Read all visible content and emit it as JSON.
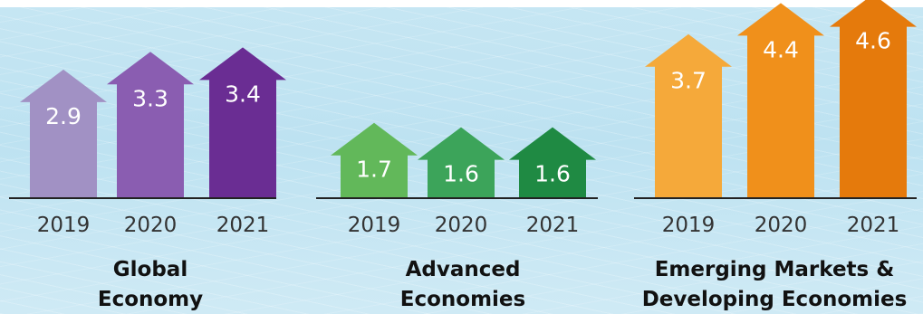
{
  "chart_data": [
    {
      "type": "bar",
      "title_lines": [
        "Global",
        "Economy"
      ],
      "categories": [
        "2019",
        "2020",
        "2021"
      ],
      "values": [
        2.9,
        3.3,
        3.4
      ],
      "colors": [
        "#a191c4",
        "#8a5db1",
        "#6a2d93"
      ]
    },
    {
      "type": "bar",
      "title_lines": [
        "Advanced",
        "Economies"
      ],
      "categories": [
        "2019",
        "2020",
        "2021"
      ],
      "values": [
        1.7,
        1.6,
        1.6
      ],
      "colors": [
        "#62b85a",
        "#3ca45a",
        "#1f8a43"
      ]
    },
    {
      "type": "bar",
      "title_lines": [
        "Emerging Markets &",
        "Developing Economies"
      ],
      "categories": [
        "2019",
        "2020",
        "2021"
      ],
      "values": [
        3.7,
        4.4,
        4.6
      ],
      "colors": [
        "#f5a93a",
        "#f0901b",
        "#e57a0c"
      ]
    }
  ]
}
